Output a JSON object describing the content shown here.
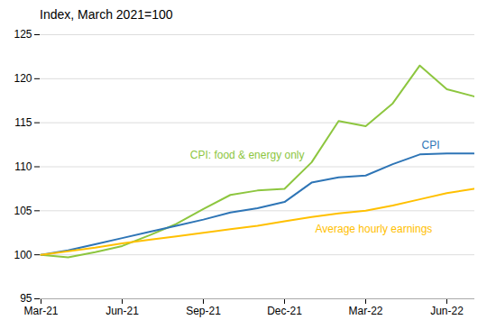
{
  "chart_data": {
    "type": "line",
    "title": "Index, March 2021=100",
    "categories": [
      "Mar-21",
      null,
      null,
      "Jun-21",
      null,
      null,
      "Sep-21",
      null,
      null,
      "Dec-21",
      null,
      null,
      "Mar-22",
      null,
      null,
      "Jun-22",
      null
    ],
    "series": [
      {
        "name": "CPI: food & energy only",
        "color": "#8DC63F",
        "values": [
          100.0,
          99.7,
          100.3,
          101.0,
          102.2,
          103.5,
          105.2,
          106.8,
          107.3,
          107.5,
          110.5,
          115.2,
          114.6,
          117.2,
          121.5,
          118.8,
          118.0
        ]
      },
      {
        "name": "CPI",
        "color": "#2E75B6",
        "values": [
          100.0,
          100.5,
          101.2,
          101.9,
          102.6,
          103.3,
          104.0,
          104.8,
          105.3,
          106.0,
          108.2,
          108.8,
          109.0,
          110.3,
          111.4,
          111.5,
          111.5
        ]
      },
      {
        "name": "Average hourly earnings",
        "color": "#FFC000",
        "values": [
          100.0,
          100.4,
          100.8,
          101.3,
          101.7,
          102.1,
          102.5,
          102.9,
          103.3,
          103.8,
          104.3,
          104.7,
          105.0,
          105.6,
          106.3,
          107.0,
          107.5
        ]
      }
    ],
    "ylim": [
      95,
      125
    ],
    "yticks": [
      95,
      100,
      105,
      110,
      115,
      120,
      125
    ],
    "grid": true
  }
}
